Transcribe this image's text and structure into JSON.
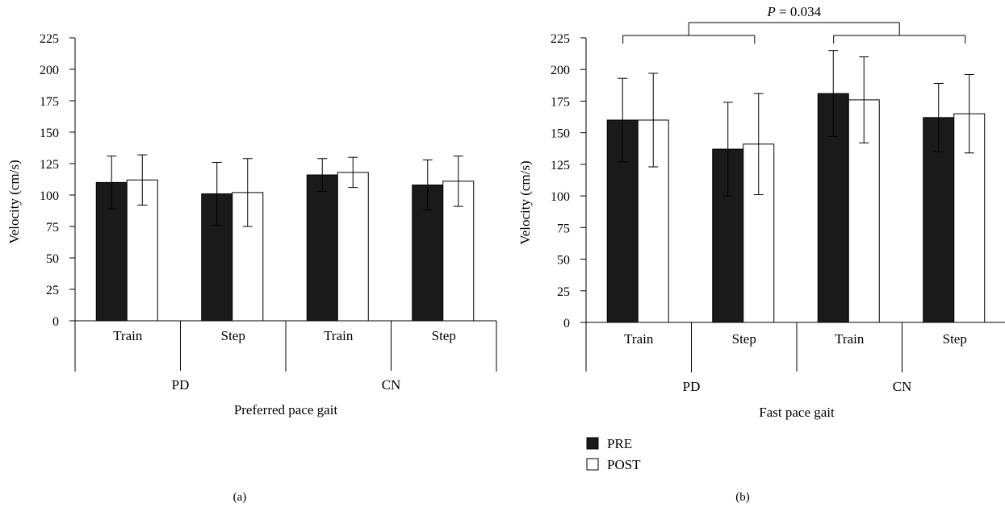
{
  "chart_data": [
    {
      "type": "bar",
      "panel_label": "(a)",
      "xlabel": "Preferred pace gait",
      "ylabel": "Velocity (cm/s)",
      "ylim": [
        0,
        225
      ],
      "yticks": [
        0,
        25,
        50,
        75,
        100,
        125,
        150,
        175,
        200,
        225
      ],
      "grid": false,
      "groups": [
        "PD",
        "CN"
      ],
      "categories": [
        "Train",
        "Step",
        "Train",
        "Step"
      ],
      "series": [
        {
          "name": "PRE",
          "color": "#1a1a1a",
          "values": [
            110,
            101,
            116,
            108
          ],
          "error": [
            21,
            25,
            13,
            20
          ]
        },
        {
          "name": "POST",
          "color": "#ffffff",
          "values": [
            112,
            102,
            118,
            111
          ],
          "error": [
            20,
            27,
            12,
            20
          ]
        }
      ]
    },
    {
      "type": "bar",
      "panel_label": "(b)",
      "xlabel": "Fast pace gait",
      "ylabel": "Velocity (cm/s)",
      "ylim": [
        0,
        225
      ],
      "yticks": [
        0,
        25,
        50,
        75,
        100,
        125,
        150,
        175,
        200,
        225
      ],
      "grid": false,
      "groups": [
        "PD",
        "CN"
      ],
      "categories": [
        "Train",
        "Step",
        "Train",
        "Step"
      ],
      "series": [
        {
          "name": "PRE",
          "color": "#1a1a1a",
          "values": [
            160,
            137,
            181,
            162
          ],
          "error": [
            33,
            37,
            34,
            27
          ]
        },
        {
          "name": "POST",
          "color": "#ffffff",
          "values": [
            160,
            141,
            176,
            165
          ],
          "error": [
            37,
            40,
            34,
            31
          ]
        }
      ],
      "annotation": {
        "prefix": "P",
        "text": " = 0.034"
      },
      "legend": {
        "placement": "bottom-left",
        "entries": [
          "PRE",
          "POST"
        ]
      }
    }
  ]
}
